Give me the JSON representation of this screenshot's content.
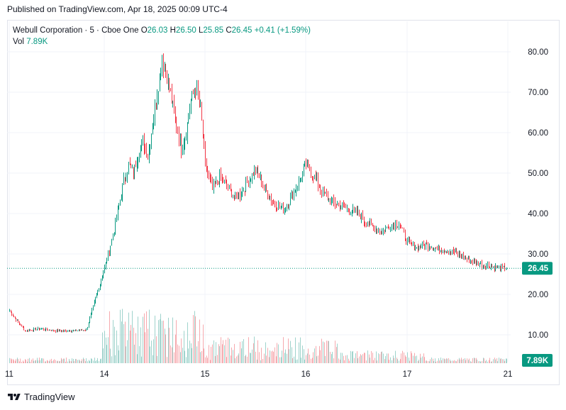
{
  "header": {
    "published": "Published on TradingView.com, Apr 18, 2025 00:09 UTC-4"
  },
  "legend": {
    "symbol": "Webull Corporation · 5 · Cboe One",
    "open_label": "O",
    "open": "26.03",
    "high_label": "H",
    "high": "26.50",
    "low_label": "L",
    "low": "25.85",
    "close_label": "C",
    "close": "26.45",
    "change": "+0.41 (+1.59%)",
    "vol_label": "Vol",
    "vol": "7.89K"
  },
  "footer": {
    "brand": "TradingView",
    "logo_icon": "tradingview-logo-icon"
  },
  "colors": {
    "up": "#089981",
    "down": "#f23645",
    "up_volume": "#9fd3cc",
    "down_volume": "#f6a9ae",
    "grid": "#f0f3fa",
    "axis_text": "#131722"
  },
  "chart_data": {
    "type": "candlestick",
    "title": "Webull Corporation · 5 · Cboe One",
    "y_ticks": [
      "80.00",
      "70.00",
      "60.00",
      "50.00",
      "40.00",
      "30.00",
      "20.00",
      "10.00"
    ],
    "x_ticks": [
      "11",
      "14",
      "15",
      "16",
      "17",
      "21"
    ],
    "ylim": [
      0,
      84
    ],
    "last_price_label": "26.45",
    "volume_label": "7.89K",
    "grid": true,
    "price_path": [
      [
        "11",
        16.0
      ],
      [
        "11",
        11.0
      ],
      [
        "11",
        11.5
      ],
      [
        "11",
        11.0
      ],
      [
        "11",
        11.0
      ],
      [
        "11",
        11.2
      ],
      [
        "14",
        26.5
      ],
      [
        "14",
        31.0
      ],
      [
        "14",
        36.0
      ],
      [
        "14",
        42.0
      ],
      [
        "14",
        48.0
      ],
      [
        "14",
        52.0
      ],
      [
        "14",
        50.0
      ],
      [
        "14",
        55.0
      ],
      [
        "14",
        58.0
      ],
      [
        "14",
        54.0
      ],
      [
        "14",
        62.0
      ],
      [
        "14",
        70.0
      ],
      [
        "14",
        78.0
      ],
      [
        "14",
        74.0
      ],
      [
        "14",
        68.0
      ],
      [
        "14",
        62.0
      ],
      [
        "14",
        56.0
      ],
      [
        "14",
        60.0
      ],
      [
        "14",
        68.0
      ],
      [
        "14",
        71.0
      ],
      [
        "14",
        66.0
      ],
      [
        "15",
        52.0
      ],
      [
        "15",
        46.0
      ],
      [
        "15",
        49.0
      ],
      [
        "15",
        47.0
      ],
      [
        "15",
        44.0
      ],
      [
        "15",
        45.0
      ],
      [
        "15",
        48.0
      ],
      [
        "15",
        51.0
      ],
      [
        "15",
        47.0
      ],
      [
        "15",
        44.0
      ],
      [
        "15",
        42.0
      ],
      [
        "15",
        41.0
      ],
      [
        "15",
        44.0
      ],
      [
        "15",
        48.0
      ],
      [
        "16",
        52.0
      ],
      [
        "16",
        49.0
      ],
      [
        "16",
        45.0
      ],
      [
        "16",
        43.0
      ],
      [
        "16",
        42.0
      ],
      [
        "16",
        41.0
      ],
      [
        "16",
        40.5
      ],
      [
        "16",
        38.0
      ],
      [
        "16",
        36.5
      ],
      [
        "16",
        35.5
      ],
      [
        "16",
        37.0
      ],
      [
        "16",
        37.5
      ],
      [
        "17",
        33.0
      ],
      [
        "17",
        31.5
      ],
      [
        "17",
        32.5
      ],
      [
        "17",
        31.5
      ],
      [
        "17",
        31.0
      ],
      [
        "17",
        30.5
      ],
      [
        "17",
        29.5
      ],
      [
        "17",
        28.0
      ],
      [
        "17",
        27.5
      ],
      [
        "17",
        27.0
      ],
      [
        "17",
        26.5
      ],
      [
        "21",
        26.45
      ]
    ]
  }
}
